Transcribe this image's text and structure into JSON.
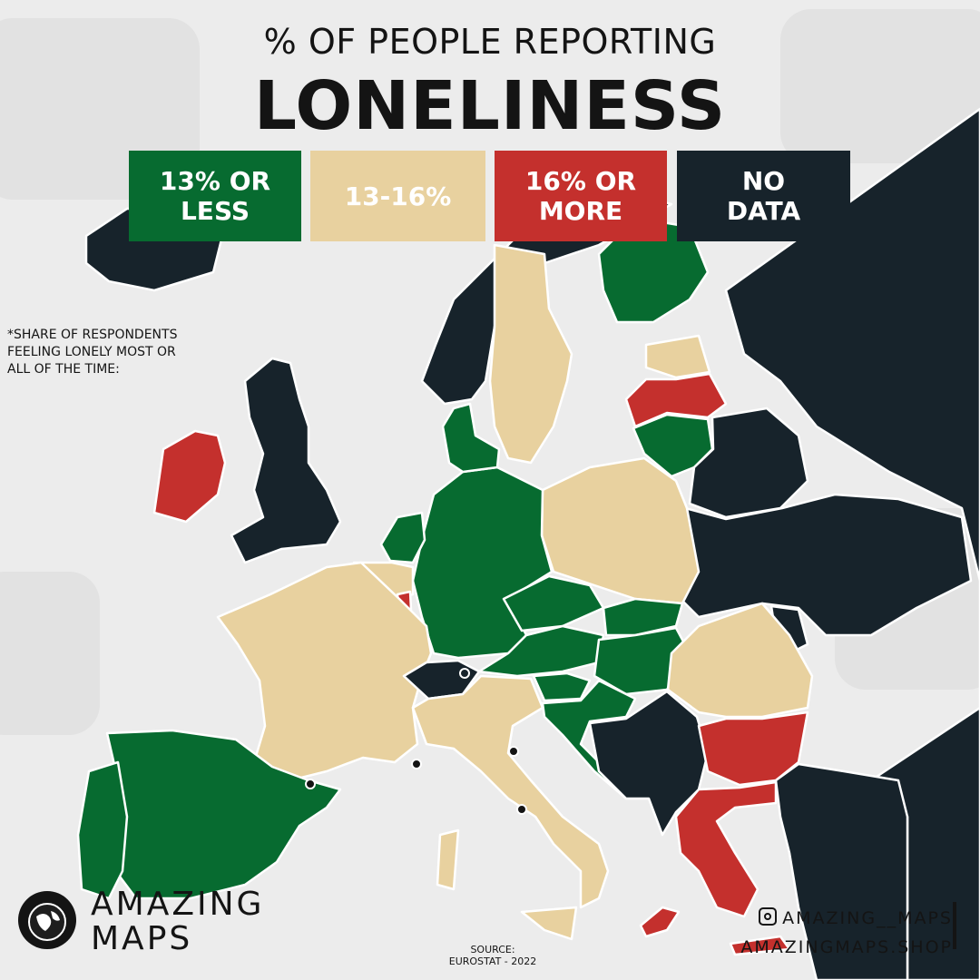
{
  "title": {
    "line1": "% OF PEOPLE REPORTING",
    "line2": "LONELINESS"
  },
  "legend": [
    {
      "line1": "13% OR",
      "line2": "LESS",
      "color": "#076b30"
    },
    {
      "line1": "13-16%",
      "line2": "",
      "color": "#e8d19f"
    },
    {
      "line1": "16% OR",
      "line2": "MORE",
      "color": "#c4302d"
    },
    {
      "line1": "NO",
      "line2": "DATA",
      "color": "#17232b"
    }
  ],
  "note": {
    "line1": "*SHARE OF RESPONDENTS",
    "line2": "FEELING LONELY MOST OR",
    "line3": "ALL OF THE TIME:"
  },
  "brand": {
    "line1": "AMAZING",
    "line2": "MAPS",
    "logo_text": "AMAZING"
  },
  "source": {
    "line1": "SOURCE:",
    "line2": "EUROSTAT - 2022"
  },
  "social": {
    "instagram": "AMAZING__MAPS",
    "shop": "AMAZINGMAPS.SHOP"
  },
  "colors": {
    "low": "#076b30",
    "mid": "#e8d19f",
    "high": "#c4302d",
    "nodata": "#17232b",
    "sea": "#ececec",
    "border": "#ffffff"
  },
  "regions": {
    "iceland": "nodata",
    "ireland": "high",
    "united-kingdom": "nodata",
    "norway": "nodata",
    "sweden": "mid",
    "finland": "low",
    "estonia": "mid",
    "latvia": "high",
    "lithuania": "low",
    "denmark": "low",
    "netherlands": "low",
    "belgium": "mid",
    "luxembourg": "high",
    "germany": "low",
    "poland": "mid",
    "france": "mid",
    "switzerland": "nodata",
    "czechia": "low",
    "slovakia": "low",
    "austria": "low",
    "hungary": "low",
    "slovenia": "low",
    "croatia": "low",
    "italy": "mid",
    "spain": "low",
    "portugal": "low",
    "romania": "mid",
    "bulgaria": "high",
    "greece": "high",
    "cyprus": "high",
    "balkans": "nodata",
    "ukraine": "nodata",
    "belarus": "nodata",
    "russia": "nodata",
    "turkey": "nodata",
    "moldova": "nodata"
  }
}
